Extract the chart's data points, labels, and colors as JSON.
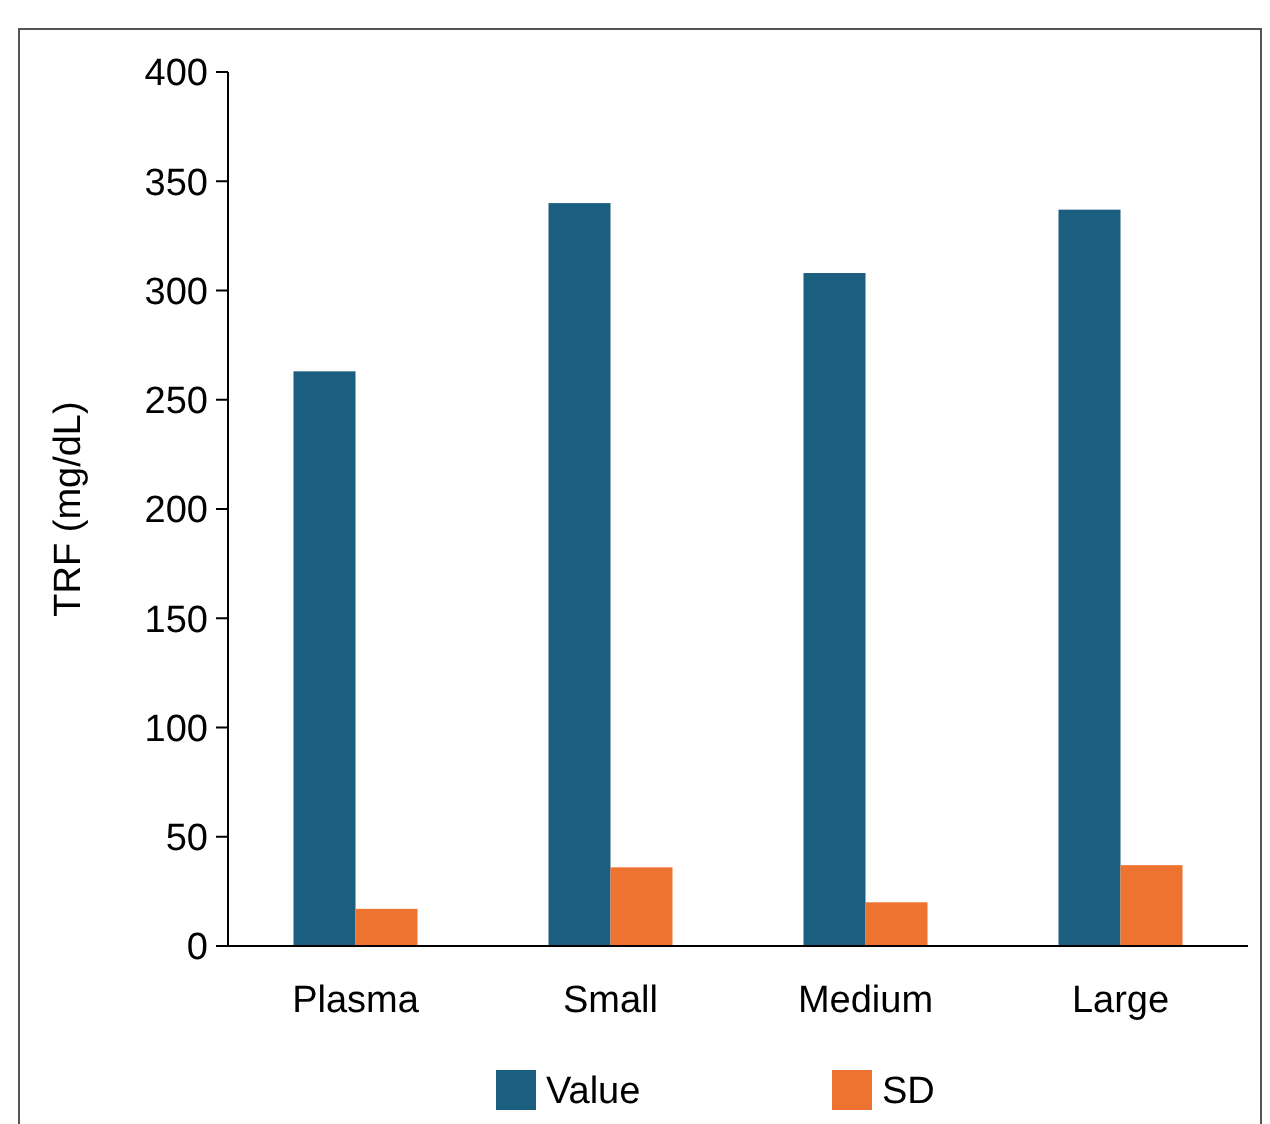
{
  "chart_data": {
    "type": "bar",
    "ylabel": "TRF (mg/dL)",
    "categories": [
      "Plasma",
      "Small",
      "Medium",
      "Large"
    ],
    "series": [
      {
        "name": "Value",
        "color": "#1b5e80",
        "values": [
          263,
          340,
          308,
          337
        ]
      },
      {
        "name": "SD",
        "color": "#ee7330",
        "values": [
          17,
          36,
          20,
          37
        ]
      }
    ],
    "ylim": [
      0,
      400
    ],
    "yticks": [
      0,
      50,
      100,
      150,
      200,
      250,
      300,
      350,
      400
    ],
    "grid": false,
    "legend": "bottom"
  }
}
